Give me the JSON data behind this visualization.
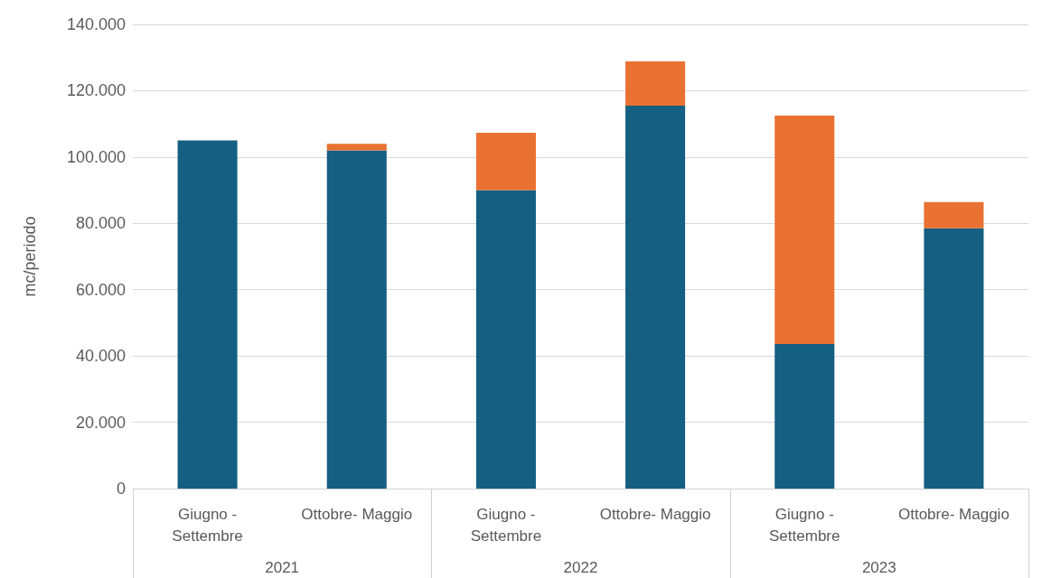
{
  "chart_data": {
    "type": "bar",
    "stacked": true,
    "ylabel": "mc/periodo",
    "categories": [
      "Giugno - Settembre",
      "Ottobre- Maggio",
      "Giugno - Settembre",
      "Ottobre- Maggio",
      "Giugno - Settembre",
      "Ottobre- Maggio"
    ],
    "series": [
      {
        "color": "#155f82",
        "values": [
          105000,
          102000,
          90000,
          115500,
          43600,
          78500
        ]
      },
      {
        "color": "#e97132",
        "values": [
          null,
          2000,
          17300,
          13300,
          68900,
          7900
        ]
      }
    ],
    "ylim": [
      0,
      140000
    ],
    "yticks": [
      0,
      {
        "value": 20000,
        "label": "20.000"
      },
      {
        "value": 40000,
        "label": "40.000"
      },
      {
        "value": 60000,
        "label": "60.000"
      },
      {
        "value": 80000,
        "label": "80.000"
      },
      {
        "value": 100000,
        "label": "100.000"
      },
      {
        "value": 120000,
        "label": "120.000"
      },
      {
        "value": 140000,
        "label": "140.000"
      }
    ],
    "grid": "y",
    "annotations": [
      "2021",
      "2022",
      "2023"
    ]
  }
}
